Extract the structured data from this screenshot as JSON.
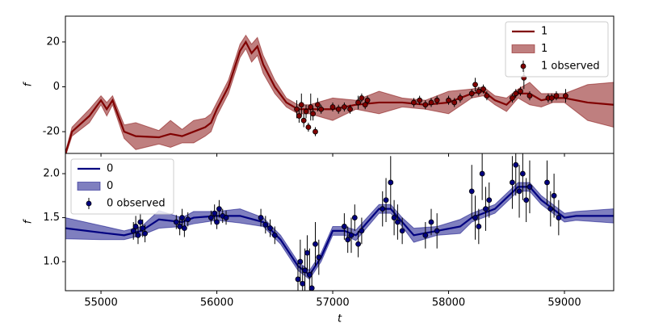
{
  "chart_data": [
    {
      "type": "line",
      "ylabel": "f",
      "xlim": [
        54693,
        59425
      ],
      "ylim": [
        -29.7,
        31.5
      ],
      "yticks": [
        -20,
        0,
        20
      ],
      "legend": "upper right",
      "x": [
        54693,
        54750,
        54900,
        55000,
        55050,
        55100,
        55200,
        55300,
        55500,
        55600,
        55700,
        55800,
        55900,
        55950,
        56000,
        56100,
        56200,
        56250,
        56300,
        56350,
        56400,
        56500,
        56600,
        56700,
        56800,
        57000,
        57200,
        57400,
        57600,
        57800,
        58000,
        58200,
        58300,
        58400,
        58500,
        58600,
        58700,
        58800,
        58900,
        59000,
        59200,
        59425
      ],
      "series": [
        {
          "name": "1",
          "kind": "line",
          "color": "#800000",
          "values": [
            -30,
            -20,
            -13,
            -6,
            -10,
            -6,
            -20,
            -22,
            -22.5,
            -21,
            -22,
            -20,
            -18,
            -16,
            -10,
            0,
            16,
            20,
            15,
            18,
            10,
            0,
            -7,
            -10,
            -10,
            -10,
            -8,
            -7,
            -7,
            -8,
            -7,
            -3,
            -2,
            -6,
            -8,
            -3,
            -3,
            -6,
            -5,
            -5,
            -7,
            -8
          ]
        },
        {
          "name": "1",
          "kind": "band",
          "color": "#800000",
          "lower": [
            -31,
            -22,
            -16,
            -8,
            -13,
            -8,
            -23,
            -28,
            -25.5,
            -27,
            -25,
            -25,
            -22,
            -20,
            -13,
            -3,
            13,
            17,
            11,
            14,
            6,
            -3,
            -9,
            -12,
            -12,
            -15,
            -10,
            -12,
            -9,
            -10,
            -12,
            -5,
            -4,
            -8,
            -11,
            -5,
            -8,
            -9,
            -7,
            -7,
            -15,
            -18
          ],
          "upper": [
            -29,
            -18,
            -10,
            -4,
            -7,
            -4,
            -17,
            -16,
            -19.5,
            -15,
            -19,
            -15,
            -14,
            -12,
            -7,
            3,
            19,
            23,
            19,
            22,
            14,
            3,
            -5,
            -8,
            -8,
            -5,
            -6,
            -2,
            -5,
            -6,
            -2,
            -1,
            0,
            -4,
            -5,
            -1,
            2,
            -3,
            -3,
            -3,
            1,
            2
          ]
        },
        {
          "name": "1 observed",
          "kind": "errorbar",
          "color": "#800000",
          "x": [
            56690,
            56710,
            56730,
            56750,
            56770,
            56790,
            56810,
            56830,
            56850,
            56870,
            56900,
            57000,
            57050,
            57100,
            57150,
            57220,
            57250,
            57280,
            57300,
            57700,
            57750,
            57800,
            57850,
            57900,
            58000,
            58050,
            58100,
            58200,
            58230,
            58260,
            58300,
            58330,
            58550,
            58580,
            58620,
            58650,
            58700,
            58860,
            58890,
            58930,
            59010
          ],
          "values": [
            -10,
            -13,
            -8,
            -15,
            -11,
            -18,
            -9,
            -12,
            -20,
            -8,
            -10,
            -9,
            -10,
            -9,
            -10,
            -7,
            -5,
            -8,
            -6,
            -7,
            -6,
            -8,
            -7,
            -6,
            -6,
            -7,
            -5,
            -3,
            1,
            -2,
            -1,
            -4,
            -5,
            -3,
            -2,
            4,
            -4,
            -5,
            -5,
            -4,
            -4
          ],
          "errors": [
            4,
            3,
            5,
            3,
            3,
            2,
            6,
            3,
            2,
            3,
            2,
            2,
            2,
            2,
            2,
            3,
            2,
            2,
            2,
            2,
            2,
            2,
            2,
            2,
            2,
            2,
            2,
            2,
            3,
            2,
            2,
            2,
            2,
            2,
            2,
            5,
            2,
            2,
            2,
            2,
            3
          ]
        }
      ]
    },
    {
      "type": "line",
      "ylabel": "f",
      "xlabel": "t",
      "xlim": [
        54693,
        59425
      ],
      "ylim": [
        0.67,
        2.23
      ],
      "xticks": [
        55000,
        56000,
        57000,
        58000,
        59000
      ],
      "yticks": [
        {
          "value": 1,
          "label": "1.0"
        },
        1.5,
        {
          "value": 2,
          "label": "2.0"
        }
      ],
      "legend": "upper left",
      "x": [
        54693,
        55000,
        55200,
        55350,
        55500,
        55700,
        55800,
        56000,
        56200,
        56400,
        56550,
        56700,
        56800,
        56900,
        57000,
        57100,
        57200,
        57400,
        57500,
        57600,
        57700,
        57900,
        58100,
        58200,
        58300,
        58400,
        58600,
        58700,
        58800,
        58900,
        59000,
        59100,
        59425
      ],
      "series": [
        {
          "name": "0",
          "kind": "line",
          "color": "#000080",
          "values": [
            1.38,
            1.33,
            1.3,
            1.35,
            1.48,
            1.45,
            1.5,
            1.52,
            1.52,
            1.45,
            1.25,
            0.95,
            0.85,
            1.05,
            1.35,
            1.35,
            1.3,
            1.6,
            1.6,
            1.45,
            1.3,
            1.35,
            1.4,
            1.5,
            1.55,
            1.6,
            1.85,
            1.85,
            1.7,
            1.6,
            1.5,
            1.52,
            1.52
          ]
        },
        {
          "name": "0",
          "kind": "band",
          "color": "#000080",
          "lower": [
            1.26,
            1.25,
            1.25,
            1.3,
            1.38,
            1.4,
            1.43,
            1.47,
            1.44,
            1.4,
            1.2,
            0.9,
            0.8,
            1.0,
            1.3,
            1.3,
            1.24,
            1.55,
            1.55,
            1.4,
            1.22,
            1.3,
            1.32,
            1.45,
            1.5,
            1.55,
            1.8,
            1.8,
            1.65,
            1.55,
            1.45,
            1.47,
            1.44
          ],
          "upper": [
            1.5,
            1.41,
            1.35,
            1.4,
            1.58,
            1.5,
            1.57,
            1.57,
            1.6,
            1.5,
            1.3,
            1.0,
            0.9,
            1.1,
            1.4,
            1.4,
            1.36,
            1.65,
            1.65,
            1.5,
            1.38,
            1.4,
            1.48,
            1.55,
            1.6,
            1.65,
            1.9,
            1.9,
            1.75,
            1.65,
            1.55,
            1.57,
            1.6
          ]
        },
        {
          "name": "0 observed",
          "kind": "errorbar",
          "color": "#000080",
          "x": [
            55280,
            55300,
            55320,
            55340,
            55360,
            55380,
            55650,
            55680,
            55700,
            55720,
            55750,
            55950,
            55980,
            56000,
            56020,
            56050,
            56080,
            56380,
            56420,
            56460,
            56500,
            56700,
            56720,
            56740,
            56760,
            56780,
            56800,
            56820,
            56850,
            56880,
            57100,
            57130,
            57160,
            57190,
            57220,
            57250,
            57430,
            57460,
            57500,
            57530,
            57560,
            57600,
            57800,
            57850,
            57900,
            58200,
            58230,
            58260,
            58290,
            58320,
            58350,
            58550,
            58580,
            58610,
            58640,
            58670,
            58700,
            58850,
            58880,
            58910,
            58950
          ],
          "values": [
            1.35,
            1.4,
            1.3,
            1.45,
            1.38,
            1.32,
            1.45,
            1.4,
            1.5,
            1.38,
            1.48,
            1.5,
            1.55,
            1.45,
            1.6,
            1.52,
            1.5,
            1.5,
            1.42,
            1.38,
            1.3,
            0.8,
            1.0,
            0.75,
            0.9,
            1.1,
            0.85,
            0.7,
            1.2,
            1.05,
            1.4,
            1.25,
            1.3,
            1.5,
            1.2,
            1.35,
            1.6,
            1.7,
            1.9,
            1.5,
            1.45,
            1.35,
            1.3,
            1.45,
            1.35,
            1.8,
            1.5,
            1.4,
            2.0,
            1.6,
            1.7,
            1.9,
            2.1,
            1.8,
            2.0,
            1.7,
            1.85,
            1.9,
            1.6,
            1.75,
            1.5
          ],
          "errors": [
            0.1,
            0.12,
            0.1,
            0.1,
            0.1,
            0.1,
            0.08,
            0.1,
            0.1,
            0.1,
            0.08,
            0.08,
            0.1,
            0.08,
            0.1,
            0.08,
            0.08,
            0.1,
            0.1,
            0.1,
            0.1,
            0.2,
            0.25,
            0.2,
            0.25,
            0.2,
            0.3,
            0.2,
            0.25,
            0.2,
            0.15,
            0.15,
            0.2,
            0.15,
            0.15,
            0.15,
            0.2,
            0.25,
            0.3,
            0.2,
            0.2,
            0.15,
            0.15,
            0.15,
            0.2,
            0.3,
            0.25,
            0.2,
            0.3,
            0.25,
            0.2,
            0.3,
            0.35,
            0.3,
            0.3,
            0.25,
            0.3,
            0.25,
            0.2,
            0.25,
            0.2
          ]
        }
      ]
    }
  ]
}
